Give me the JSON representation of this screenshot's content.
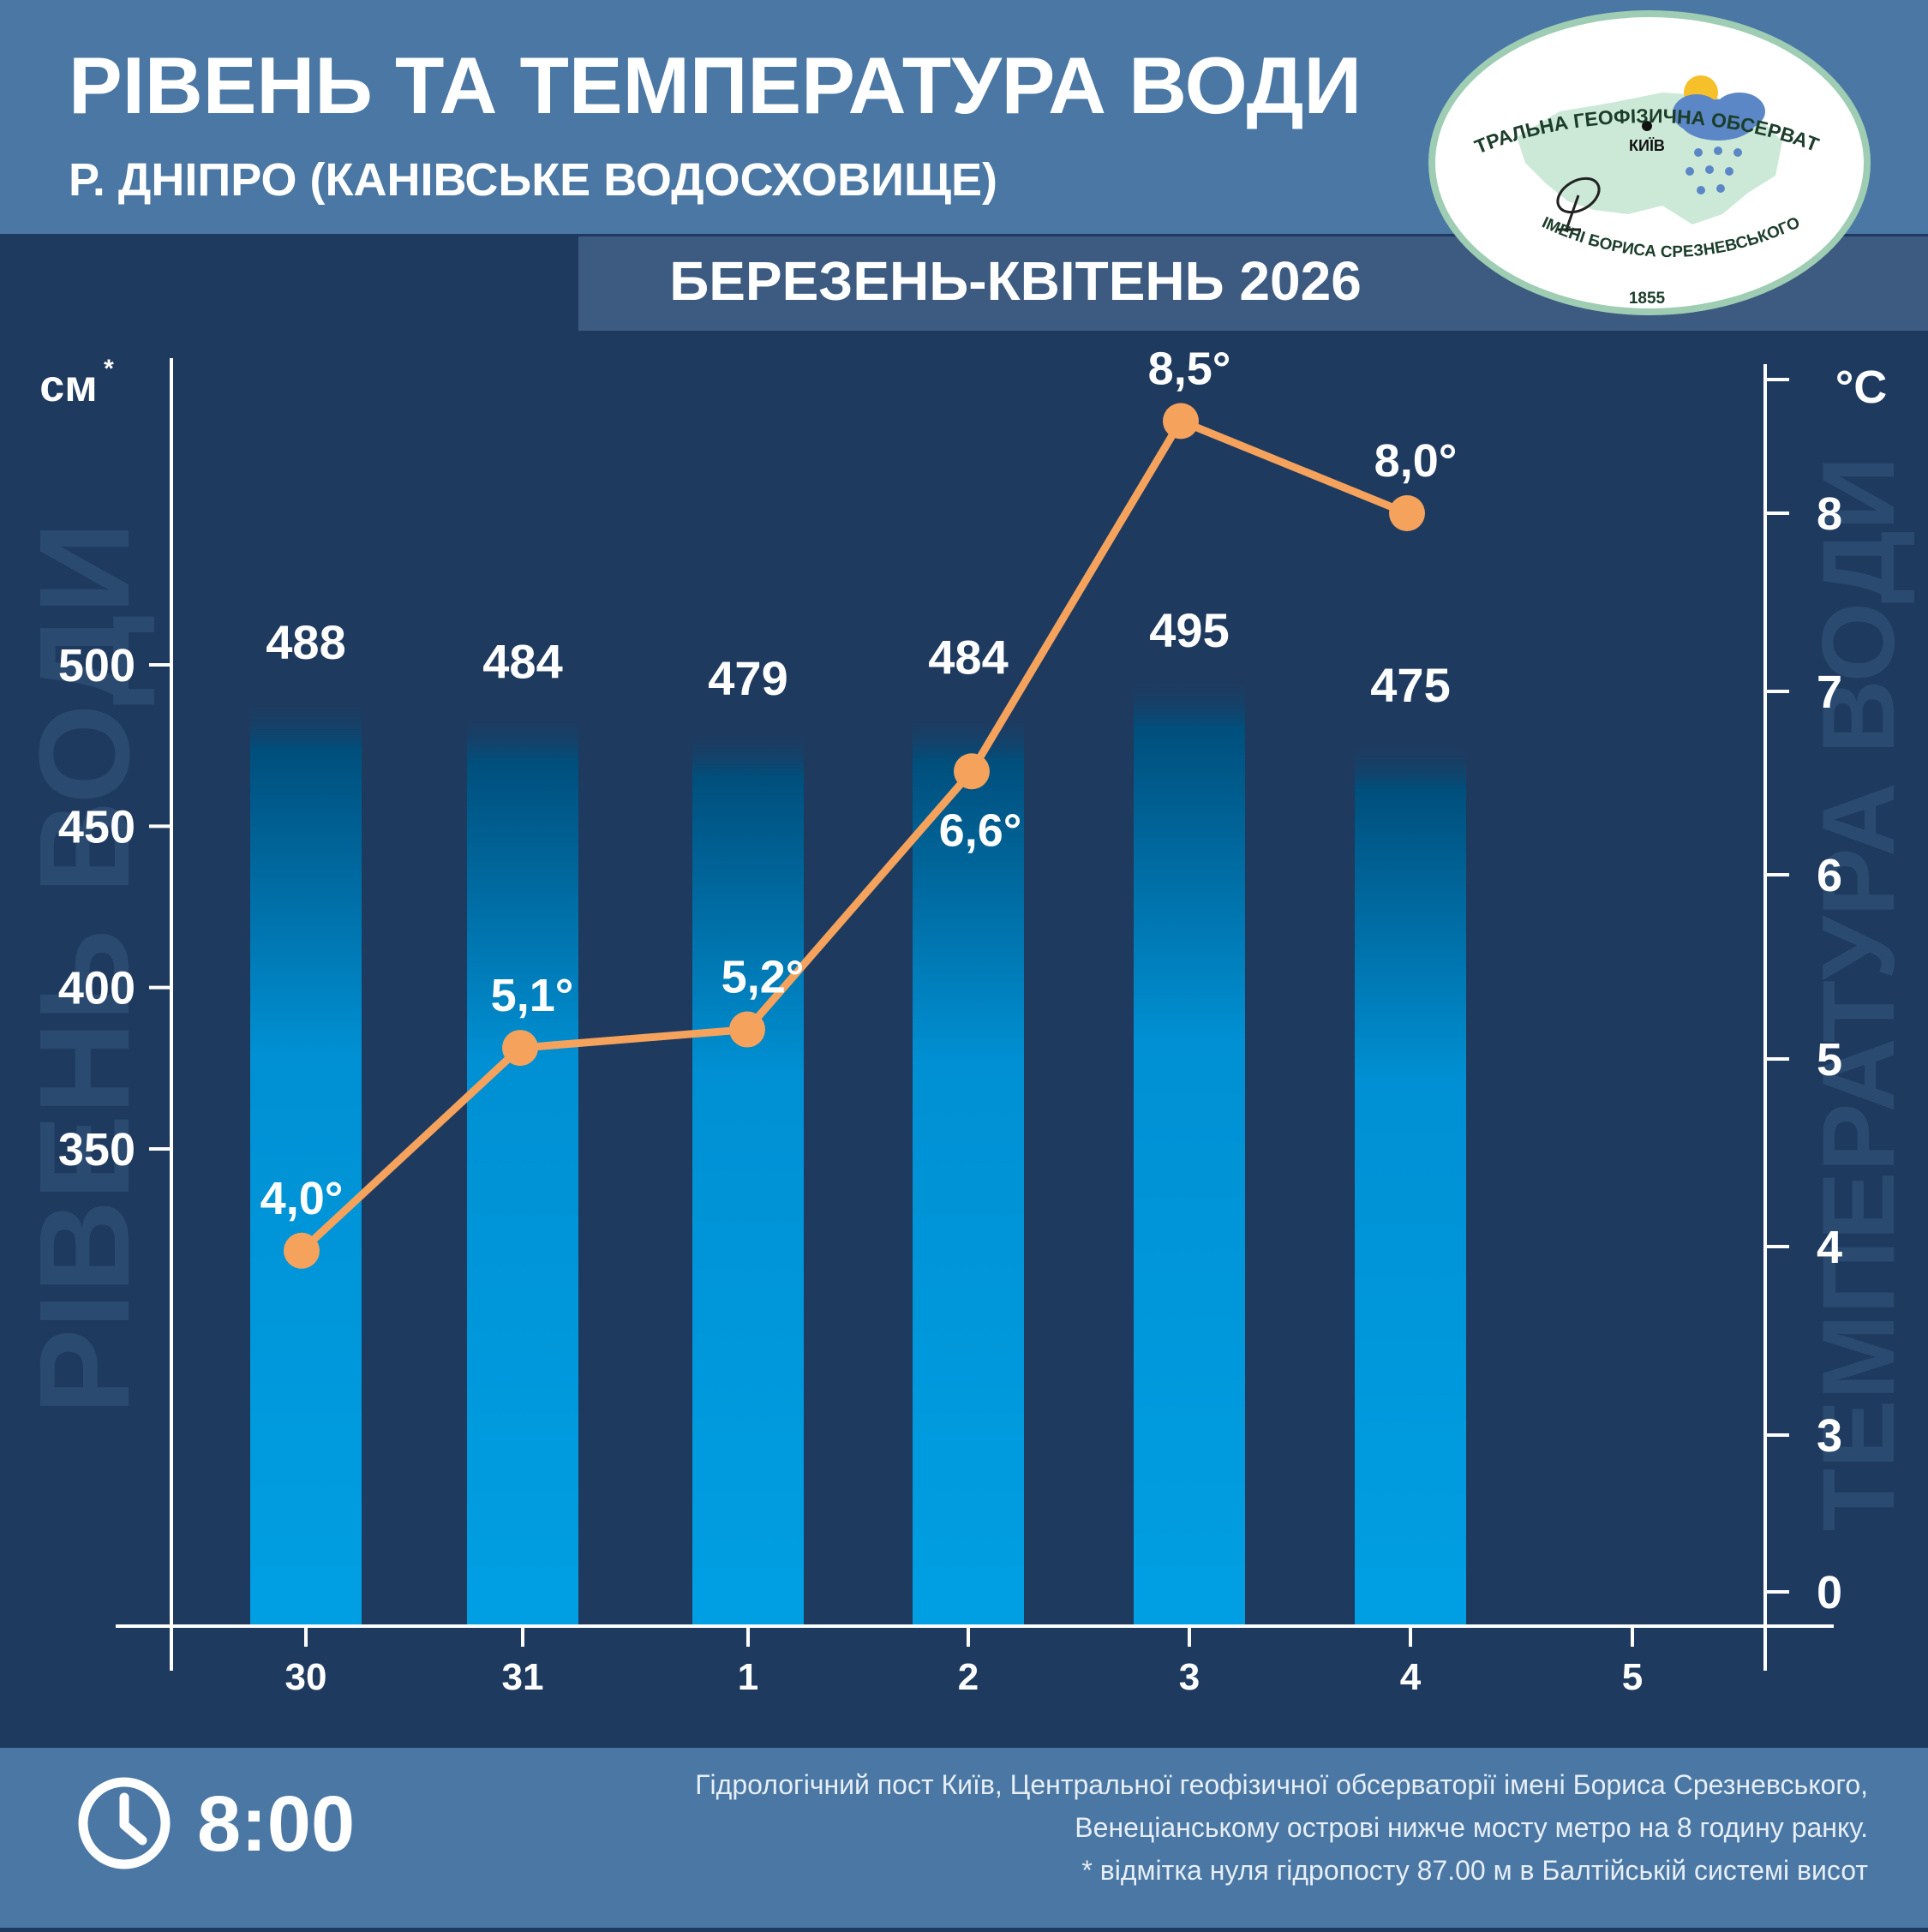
{
  "header": {
    "title": "РІВЕНЬ ТА ТЕМПЕРАТУРА ВОДИ",
    "subtitle": "Р. ДНІПРО (КАНІВСЬКЕ ВОДОСХОВИЩЕ)",
    "period": "БЕРЕЗЕНЬ-КВІТЕНЬ 2026"
  },
  "logo": {
    "top_text": "ЦЕНТРАЛЬНА ГЕОФІЗИЧНА ОБСЕРВАТОРІЯ",
    "bottom_text": "ІМЕНІ БОРИСА СРЕЗНЕВСЬКОГО",
    "year": "1855",
    "city": "КИЇВ"
  },
  "colors": {
    "background": "#1f3a5f",
    "header_band": "#4a77a3",
    "bar_top": "#004f7c",
    "bar_bottom": "#009fe3",
    "temp_line": "#f5a25d",
    "axis": "#ffffff",
    "watermark": "#2b4a70"
  },
  "chart_data": {
    "type": "bar",
    "categories": [
      "30",
      "31",
      "1",
      "2",
      "3",
      "4",
      "5"
    ],
    "series": [
      {
        "name": "Рівень води",
        "type": "bar",
        "axis": "left",
        "values": [
          488,
          484,
          479,
          484,
          495,
          475,
          null
        ],
        "labels": [
          "488",
          "484",
          "479",
          "484",
          "495",
          "475",
          ""
        ]
      },
      {
        "name": "Температура води",
        "type": "line",
        "axis": "right",
        "values": [
          4.0,
          5.1,
          5.2,
          6.6,
          8.5,
          8.0,
          null
        ],
        "labels": [
          "4,0°",
          "5,1°",
          "5,2°",
          "6,6°",
          "8,5°",
          "8,0°",
          ""
        ]
      }
    ],
    "left_axis": {
      "unit": "см",
      "unit_mark": "*",
      "ticks": [
        350,
        400,
        450,
        500
      ],
      "ylim": [
        300,
        550
      ]
    },
    "right_axis": {
      "unit": "°C",
      "ticks": [
        0,
        3,
        4,
        5,
        6,
        7,
        8
      ],
      "ylim": [
        0,
        9.5
      ]
    },
    "left_title": "РІВЕНЬ ВОДИ",
    "right_title": "ТЕМПЕРАТУРА ВОДИ"
  },
  "footer": {
    "time": "8:00",
    "note_line1": "Гідрологічний пост Київ, Центральної геофізичної обсерваторії імені Бориса Срезневського,",
    "note_line2": "Венеціанському острові нижче мосту метро  на 8 годину ранку.",
    "note_line3": "* відмітка нуля гідропосту 87.00 м в Балтійській системі висот"
  }
}
